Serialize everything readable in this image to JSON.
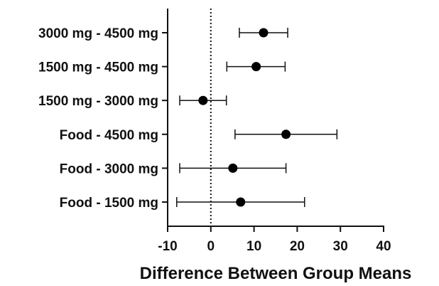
{
  "chart_data": {
    "type": "scatter",
    "subtype": "forest-plot-with-error-bars",
    "title": "",
    "xlabel": "Difference Between Group Means",
    "ylabel": "",
    "xlim": [
      -10,
      40
    ],
    "xticks": [
      -10,
      0,
      10,
      20,
      30,
      40
    ],
    "reference_line": {
      "x": 0,
      "style": "dotted"
    },
    "grid": false,
    "categories": [
      "3000 mg - 4500 mg",
      "1500 mg - 4500 mg",
      "1500 mg - 3000 mg",
      "Food - 4500 mg",
      "Food - 3000 mg",
      "Food - 1500 mg"
    ],
    "estimates": [
      12.2,
      10.5,
      -1.8,
      17.4,
      5.1,
      6.9
    ],
    "ci_lower": [
      6.6,
      3.7,
      -7.2,
      5.6,
      -7.2,
      -7.9
    ],
    "ci_upper": [
      17.8,
      17.2,
      3.6,
      29.2,
      17.4,
      21.7
    ]
  }
}
